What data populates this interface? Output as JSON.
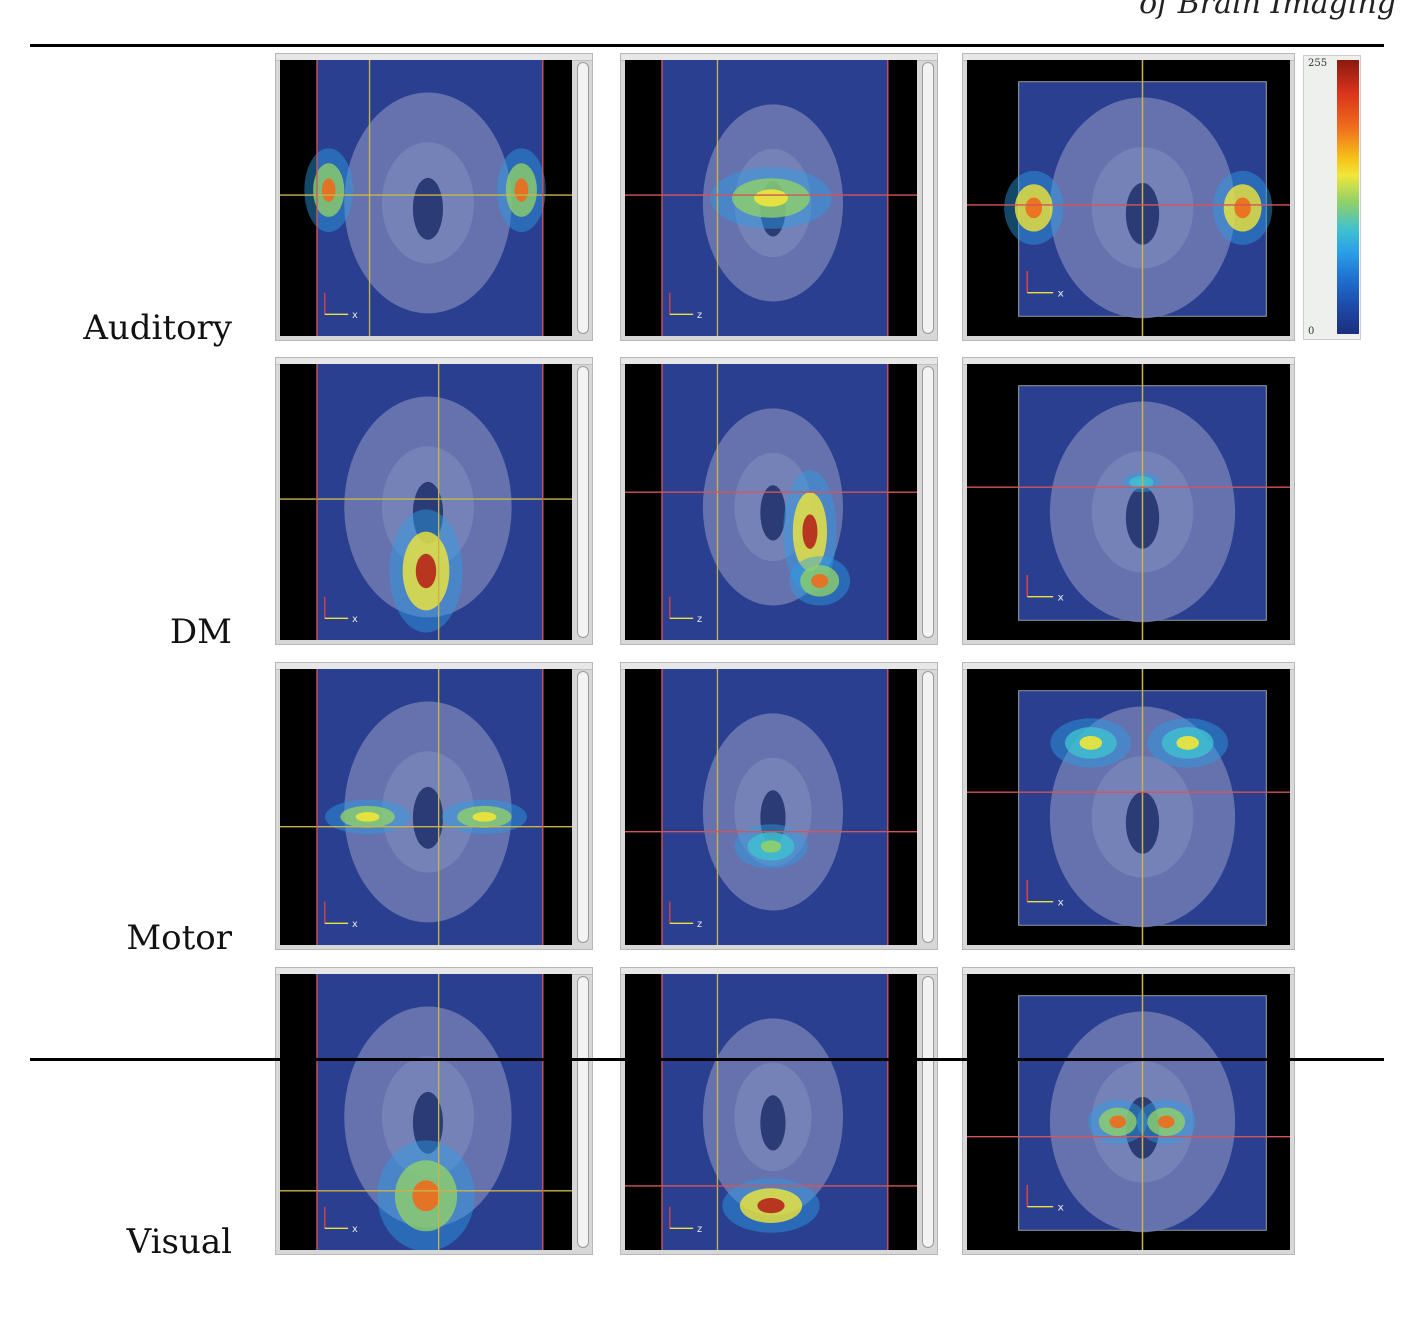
{
  "header": {
    "text": "of Brain Imaging"
  },
  "rows": [
    {
      "label": "Auditory"
    },
    {
      "label": "DM"
    },
    {
      "label": "Motor"
    },
    {
      "label": "Visual"
    }
  ],
  "colorbar": {
    "max_label": "255",
    "min_label": "0",
    "colormap": "jet"
  },
  "axis_labels": {
    "axial": "x",
    "sagittal": "z",
    "coronal": "x"
  },
  "colors": {
    "background_blue": "#2a3f8f",
    "crosshair_yellow": "#c9b44a",
    "crosshair_red": "#d2555a",
    "brain_gray": "#6b78b0"
  }
}
